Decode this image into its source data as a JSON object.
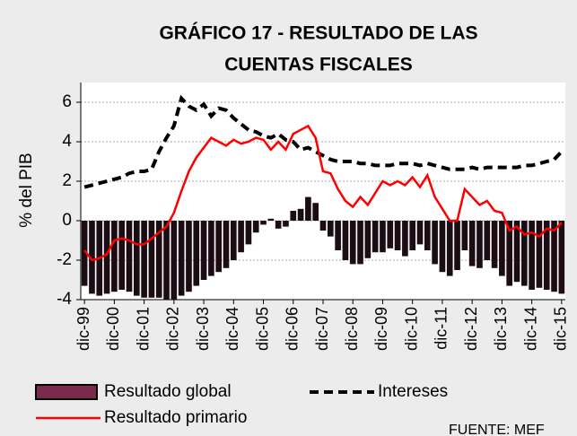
{
  "chart_data": {
    "type": "bar_line",
    "title": [
      "GRÁFICO 17 - RESULTADO DE LAS",
      "CUENTAS FISCALES"
    ],
    "y_label": "% del PIB",
    "source": "FUENTE: MEF",
    "categories": [
      "dic-99",
      null,
      null,
      null,
      "dic-00",
      null,
      null,
      null,
      "dic-01",
      null,
      null,
      null,
      "dic-02",
      null,
      null,
      null,
      "dic-03",
      null,
      null,
      null,
      "dic-04",
      null,
      null,
      null,
      "dic-05",
      null,
      null,
      null,
      "dic-06",
      null,
      null,
      null,
      "dic-07",
      null,
      null,
      null,
      "dic-08",
      null,
      null,
      null,
      "dic-09",
      null,
      null,
      null,
      "dic-10",
      null,
      null,
      null,
      "dic-11",
      null,
      null,
      null,
      "dic-12",
      null,
      null,
      null,
      "dic-13",
      null,
      null,
      null,
      "dic-14",
      null,
      null,
      null,
      "dic-15"
    ],
    "series": [
      {
        "name": "Resultado global",
        "type": "bar",
        "color": "#1c0c14",
        "legend_color": "#7a2a4c",
        "values": [
          -3.3,
          -3.7,
          -3.8,
          -3.7,
          -3.6,
          -3.5,
          -3.6,
          -3.8,
          -3.9,
          -3.9,
          -3.9,
          -4.0,
          -4.0,
          -3.8,
          -3.6,
          -3.3,
          -3.0,
          -2.8,
          -2.6,
          -2.4,
          -2.0,
          -1.6,
          -1.2,
          -0.6,
          -0.2,
          0.1,
          -0.4,
          -0.3,
          0.5,
          0.6,
          1.2,
          0.9,
          -0.5,
          -0.8,
          -1.5,
          -2.0,
          -2.2,
          -2.2,
          -1.9,
          -1.6,
          -1.6,
          -1.4,
          -1.5,
          -1.8,
          -1.5,
          -1.2,
          -1.5,
          -2.2,
          -2.6,
          -2.8,
          -2.5,
          -1.5,
          -2.3,
          -2.4,
          -2.0,
          -2.4,
          -2.8,
          -3.3,
          -3.1,
          -3.3,
          -3.5,
          -3.4,
          -3.5,
          -3.6,
          -3.7
        ]
      },
      {
        "name": "Intereses",
        "type": "dashed",
        "color": "#000000",
        "values": [
          1.7,
          1.8,
          1.9,
          2.0,
          2.1,
          2.2,
          2.4,
          2.5,
          2.5,
          2.6,
          3.5,
          4.2,
          4.8,
          6.2,
          5.8,
          5.6,
          5.9,
          5.3,
          5.7,
          5.6,
          5.2,
          4.9,
          4.6,
          4.5,
          4.3,
          4.2,
          4.4,
          4.1,
          4.0,
          3.6,
          3.7,
          3.5,
          3.3,
          3.1,
          3.0,
          3.0,
          3.0,
          2.9,
          2.9,
          2.8,
          2.8,
          2.8,
          2.9,
          2.9,
          2.9,
          2.8,
          2.9,
          2.8,
          2.7,
          2.6,
          2.6,
          2.6,
          2.7,
          2.6,
          2.7,
          2.7,
          2.7,
          2.7,
          2.7,
          2.8,
          2.8,
          2.9,
          3.0,
          3.1,
          3.5
        ]
      },
      {
        "name": "Resultado primario",
        "type": "line",
        "color": "#ff0000",
        "values": [
          -1.5,
          -2.0,
          -1.9,
          -1.7,
          -1.0,
          -0.9,
          -1.0,
          -1.2,
          -1.2,
          -0.9,
          -0.6,
          -0.3,
          0.4,
          1.5,
          2.5,
          3.2,
          3.7,
          4.2,
          4.0,
          3.8,
          4.1,
          3.9,
          4.0,
          4.2,
          4.1,
          3.6,
          4.0,
          3.6,
          4.4,
          4.6,
          4.8,
          4.2,
          2.5,
          2.4,
          1.6,
          1.0,
          0.7,
          1.2,
          0.8,
          1.4,
          2.0,
          1.8,
          2.0,
          1.8,
          2.2,
          1.7,
          2.3,
          1.2,
          0.6,
          0.0,
          0.0,
          1.6,
          1.2,
          0.8,
          1.0,
          0.5,
          0.4,
          -0.5,
          -0.3,
          -0.7,
          -0.6,
          -0.8,
          -0.4,
          -0.5,
          -0.1
        ]
      }
    ],
    "ylim": [
      -4,
      7
    ],
    "yticks": [
      -4,
      -2,
      0,
      2,
      4,
      6
    ],
    "grid": true
  }
}
